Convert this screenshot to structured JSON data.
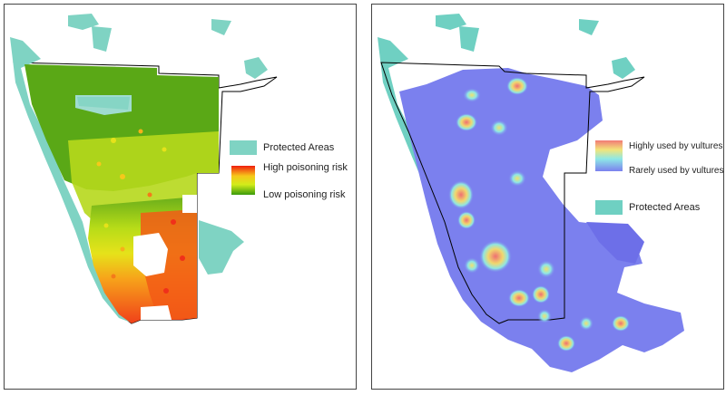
{
  "left_map": {
    "legend": {
      "protected_areas": "Protected Areas",
      "high_risk": "High poisoning risk",
      "low_risk": "Low poisoning risk"
    },
    "colors": {
      "protected": "#7fd3c3",
      "low": "#3a9a0c",
      "mid": "#d8e81a",
      "high": "#f43a12"
    }
  },
  "right_map": {
    "legend": {
      "high_use": "Highly used by vultures",
      "low_use": "Rarely used by vultures",
      "protected_areas": "Protected Areas"
    },
    "colors": {
      "base": "#7b80ee",
      "hot": "#ef7a78",
      "warm": "#e8f07a",
      "cool": "#8ee8e6",
      "protected": "#6fd0c2"
    }
  }
}
